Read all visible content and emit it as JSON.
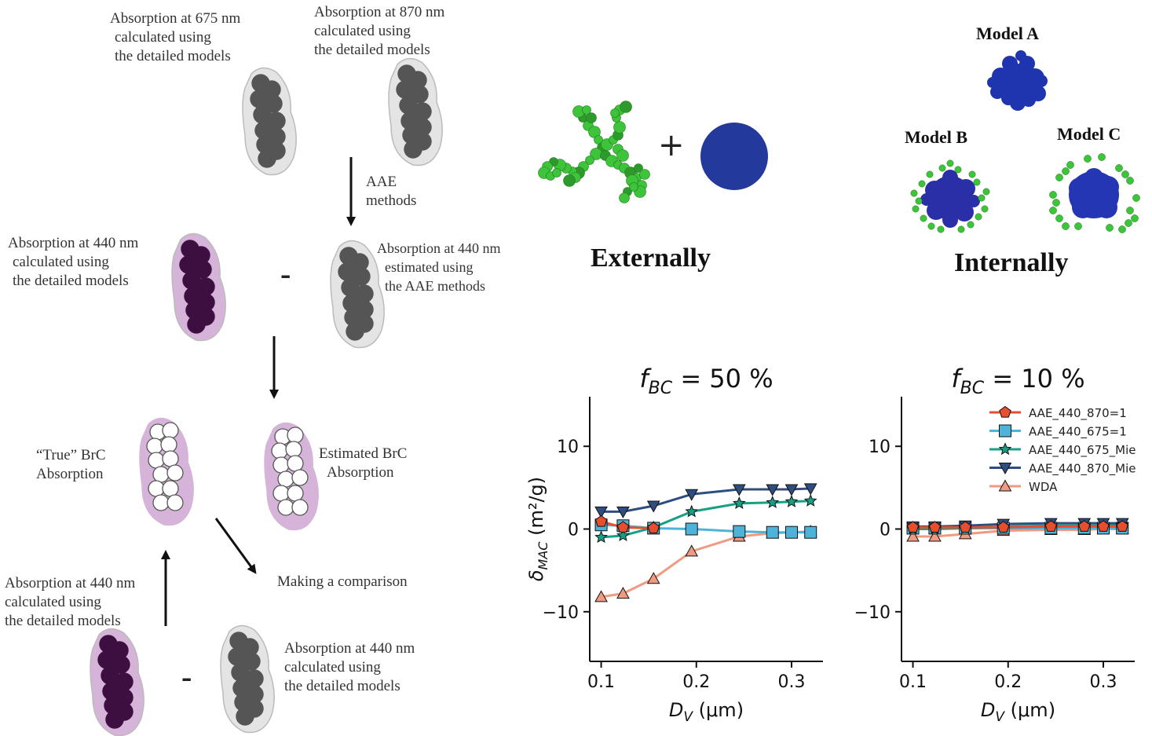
{
  "left_flow": {
    "label_675": [
      "Absorption at 675 nm",
      "calculated using",
      "the detailed models"
    ],
    "label_870": [
      "Absorption at 870 nm",
      "calculated using",
      "the detailed models"
    ],
    "aae_methods": [
      "AAE",
      "methods"
    ],
    "label_440_detailed": [
      "Absorption at 440 nm",
      "calculated using",
      "the detailed models"
    ],
    "minus": "-",
    "label_440_estimated": [
      "Absorption at 440 nm",
      "estimated using",
      "the AAE methods"
    ],
    "true_brc": [
      "“True” BrC",
      "Absorption"
    ],
    "estimated_brc": [
      "Estimated BrC",
      "Absorption"
    ],
    "comparison": "Making a comparison",
    "label_440_bottom_left": [
      "Absorption at 440 nm",
      "calculated using",
      "the detailed models"
    ],
    "label_440_bottom_right": [
      "Absorption at 440 nm",
      "calculated using",
      "the detailed models"
    ]
  },
  "mixing": {
    "plus": "+",
    "externally": "Externally",
    "internally": "Internally",
    "model_a": "Model A",
    "model_b": "Model B",
    "model_c": "Model C"
  },
  "colors": {
    "bc_gray": "#555555",
    "brc_purple": "#3d0f40",
    "halo_purple": "#d6b3d8",
    "halo_gray": "#e4e4e4",
    "aggregate_green": "#3ec43a",
    "sphere_blue": "#23399c"
  },
  "chart_data": [
    {
      "type": "line",
      "title": "f_BC = 50 %",
      "title_main": "f",
      "title_sub": "BC",
      "title_rest": " = 50 %",
      "xlabel": "D_V (μm)",
      "ylabel": "δ_MAC (m²/g)",
      "xlim": [
        0.088,
        0.333
      ],
      "ylim": [
        -16,
        16
      ],
      "xticks": [
        0.1,
        0.2,
        0.3
      ],
      "xtick_labels": [
        "0.1",
        "0.2",
        "0.3"
      ],
      "yticks": [
        10,
        0,
        -10
      ],
      "ytick_labels": [
        "10",
        "0",
        "−10"
      ],
      "x": [
        0.1,
        0.123,
        0.155,
        0.195,
        0.245,
        0.28,
        0.3,
        0.32
      ],
      "series": [
        {
          "name": "AAE_440_870=1",
          "marker": "pentagon",
          "color": "#e84e2d",
          "values": [
            0.9,
            0.2,
            0.1,
            null,
            null,
            null,
            null,
            null
          ]
        },
        {
          "name": "AAE_440_675=1",
          "marker": "square",
          "color": "#4db3d8",
          "values": [
            0.5,
            0.4,
            0.1,
            0.0,
            -0.3,
            -0.4,
            -0.4,
            -0.4
          ]
        },
        {
          "name": "AAE_440_675_Mie",
          "marker": "star",
          "color": "#17a086",
          "values": [
            -1.0,
            -0.8,
            0.2,
            2.1,
            3.1,
            3.2,
            3.3,
            3.4
          ]
        },
        {
          "name": "AAE_440_870_Mie",
          "marker": "triangle-down",
          "color": "#2d4e7e",
          "values": [
            2.1,
            2.1,
            2.8,
            4.2,
            4.8,
            4.8,
            4.8,
            4.9
          ]
        },
        {
          "name": "WDA",
          "marker": "triangle-up",
          "color": "#f09a82",
          "values": [
            -8.2,
            -7.8,
            -6.0,
            -2.7,
            -0.9,
            -0.5,
            -0.4,
            -0.3
          ]
        }
      ]
    },
    {
      "type": "line",
      "title": "f_BC = 10 %",
      "title_main": "f",
      "title_sub": "BC",
      "title_rest": " = 10 %",
      "xlabel": "D_V (μm)",
      "ylabel": "",
      "xlim": [
        0.088,
        0.333
      ],
      "ylim": [
        -16,
        16
      ],
      "xticks": [
        0.1,
        0.2,
        0.3
      ],
      "xtick_labels": [
        "0.1",
        "0.2",
        "0.3"
      ],
      "yticks": [
        10,
        0,
        -10
      ],
      "ytick_labels": [
        "10",
        "0",
        "−10"
      ],
      "legend_location": "upper right",
      "x": [
        0.1,
        0.123,
        0.155,
        0.195,
        0.245,
        0.28,
        0.3,
        0.32
      ],
      "series": [
        {
          "name": "AAE_440_870=1",
          "marker": "pentagon",
          "color": "#e84e2d",
          "values": [
            0.2,
            0.2,
            0.2,
            0.2,
            0.3,
            0.3,
            0.3,
            0.3
          ]
        },
        {
          "name": "AAE_440_675=1",
          "marker": "square",
          "color": "#4db3d8",
          "values": [
            0.1,
            0.1,
            0.1,
            0.1,
            0.1,
            0.1,
            0.1,
            0.1
          ]
        },
        {
          "name": "AAE_440_675_Mie",
          "marker": "star",
          "color": "#17a086",
          "values": [
            0.0,
            0.0,
            0.1,
            0.3,
            0.4,
            0.4,
            0.4,
            0.5
          ]
        },
        {
          "name": "AAE_440_870_Mie",
          "marker": "triangle-down",
          "color": "#2d4e7e",
          "values": [
            0.3,
            0.3,
            0.4,
            0.6,
            0.7,
            0.7,
            0.7,
            0.7
          ]
        },
        {
          "name": "WDA",
          "marker": "triangle-up",
          "color": "#f09a82",
          "values": [
            -0.9,
            -0.9,
            -0.6,
            -0.2,
            -0.1,
            -0.1,
            0.0,
            0.0
          ]
        }
      ]
    }
  ]
}
